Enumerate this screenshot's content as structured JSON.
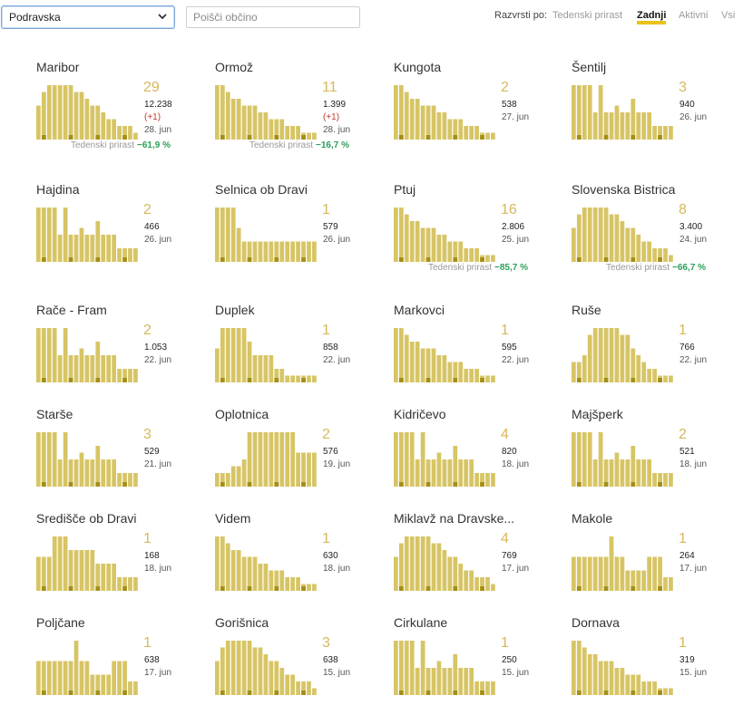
{
  "filter": {
    "region_value": "Podravska",
    "search_placeholder": "Poišči občino"
  },
  "sort": {
    "label": "Razvrsti po:",
    "options": [
      "Tedenski prirast",
      "Zadnji",
      "Aktivni",
      "Vsi"
    ],
    "active": "Zadnji"
  },
  "colors": {
    "bar": "#d7c565",
    "bar_dark": "#a48f14",
    "accent": "#e8c21a",
    "growth": "#2e9e5a",
    "delta": "#c0392b"
  },
  "growth_label": "Tedenski prirast",
  "cards": [
    {
      "name": "Maribor",
      "big": "29",
      "total": "12.238",
      "delta": "(+1)",
      "date": "28. jun",
      "growth": "−61,9 %",
      "shape": "hump"
    },
    {
      "name": "Ormož",
      "big": "11",
      "total": "1.399",
      "delta": "(+1)",
      "date": "28. jun",
      "growth": "−16,7 %",
      "shape": "decline"
    },
    {
      "name": "Kungota",
      "big": "2",
      "total": "538",
      "date": "27. jun",
      "shape": "decline"
    },
    {
      "name": "Šentilj",
      "big": "3",
      "total": "940",
      "date": "26. jun",
      "shape": "steps"
    },
    {
      "name": "Hajdina",
      "big": "2",
      "total": "466",
      "date": "26. jun",
      "shape": "steps"
    },
    {
      "name": "Selnica ob Dravi",
      "big": "1",
      "total": "579",
      "date": "26. jun",
      "shape": "drop"
    },
    {
      "name": "Ptuj",
      "big": "16",
      "total": "2.806",
      "date": "25. jun",
      "growth": "−85,7 %",
      "shape": "decline"
    },
    {
      "name": "Slovenska Bistrica",
      "big": "8",
      "total": "3.400",
      "date": "24. jun",
      "growth": "−66,7 %",
      "shape": "hump"
    },
    {
      "name": "Rače - Fram",
      "big": "2",
      "total": "1.053",
      "date": "22. jun",
      "shape": "steps"
    },
    {
      "name": "Duplek",
      "big": "1",
      "total": "858",
      "date": "22. jun",
      "shape": "early"
    },
    {
      "name": "Markovci",
      "big": "1",
      "total": "595",
      "date": "22. jun",
      "shape": "decline"
    },
    {
      "name": "Ruše",
      "big": "1",
      "total": "766",
      "date": "22. jun",
      "shape": "plateau"
    },
    {
      "name": "Starše",
      "big": "3",
      "total": "529",
      "date": "21. jun",
      "shape": "steps"
    },
    {
      "name": "Oplotnica",
      "big": "2",
      "total": "576",
      "date": "19. jun",
      "shape": "rise"
    },
    {
      "name": "Kidričevo",
      "big": "4",
      "total": "820",
      "date": "18. jun",
      "shape": "steps"
    },
    {
      "name": "Majšperk",
      "big": "2",
      "total": "521",
      "date": "18. jun",
      "shape": "steps"
    },
    {
      "name": "Središče ob Dravi",
      "big": "1",
      "total": "168",
      "date": "18. jun",
      "shape": "block"
    },
    {
      "name": "Videm",
      "big": "1",
      "total": "630",
      "date": "18. jun",
      "shape": "decline"
    },
    {
      "name": "Miklavž na Dravske...",
      "big": "4",
      "total": "769",
      "date": "17. jun",
      "shape": "hump"
    },
    {
      "name": "Makole",
      "big": "1",
      "total": "264",
      "date": "17. jun",
      "shape": "flat"
    },
    {
      "name": "Poljčane",
      "big": "1",
      "total": "638",
      "date": "17. jun",
      "shape": "flat"
    },
    {
      "name": "Gorišnica",
      "big": "3",
      "total": "638",
      "date": "15. jun",
      "shape": "hump"
    },
    {
      "name": "Cirkulane",
      "big": "1",
      "total": "250",
      "date": "15. jun",
      "shape": "steps"
    },
    {
      "name": "Dornava",
      "big": "1",
      "total": "319",
      "date": "15. jun",
      "shape": "decline"
    }
  ]
}
